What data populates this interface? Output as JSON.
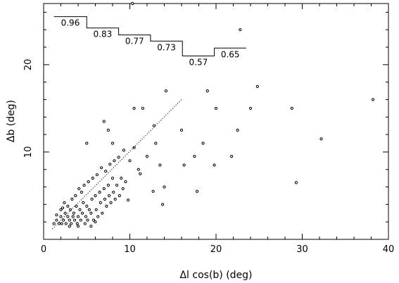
{
  "chart_data": {
    "type": "scatter",
    "xlabel": "Δl cos(b) (deg)",
    "ylabel": "Δb (deg)",
    "xlim": [
      0,
      40
    ],
    "ylim": [
      0,
      27
    ],
    "x_ticks": [
      0,
      10,
      20,
      30,
      40
    ],
    "y_ticks": [
      10,
      20
    ],
    "grid": false,
    "points": [
      [
        1.2,
        1.8
      ],
      [
        1.5,
        2.2
      ],
      [
        1.8,
        1.8
      ],
      [
        2.0,
        2.6
      ],
      [
        2.1,
        1.8
      ],
      [
        2.3,
        2.2
      ],
      [
        2.5,
        3.0
      ],
      [
        2.6,
        1.8
      ],
      [
        2.8,
        2.6
      ],
      [
        3.0,
        2.2
      ],
      [
        3.1,
        3.4
      ],
      [
        3.2,
        1.8
      ],
      [
        3.4,
        2.6
      ],
      [
        3.5,
        3.0
      ],
      [
        3.6,
        2.2
      ],
      [
        3.8,
        3.8
      ],
      [
        3.9,
        1.8
      ],
      [
        4.0,
        2.6
      ],
      [
        4.2,
        3.4
      ],
      [
        4.3,
        2.2
      ],
      [
        4.5,
        3.0
      ],
      [
        4.6,
        4.2
      ],
      [
        4.8,
        1.8
      ],
      [
        4.9,
        2.6
      ],
      [
        5.0,
        3.8
      ],
      [
        5.1,
        2.2
      ],
      [
        5.3,
        3.4
      ],
      [
        5.5,
        3.0
      ],
      [
        5.6,
        4.6
      ],
      [
        5.8,
        2.2
      ],
      [
        6.0,
        5.0
      ],
      [
        6.1,
        3.4
      ],
      [
        6.3,
        2.6
      ],
      [
        6.5,
        5.4
      ],
      [
        6.6,
        4.2
      ],
      [
        6.8,
        3.0
      ],
      [
        7.0,
        5.8
      ],
      [
        7.1,
        4.6
      ],
      [
        7.3,
        3.8
      ],
      [
        7.5,
        6.2
      ],
      [
        7.6,
        5.0
      ],
      [
        7.8,
        4.2
      ],
      [
        8.0,
        7.0
      ],
      [
        8.1,
        5.4
      ],
      [
        8.3,
        4.6
      ],
      [
        8.5,
        6.2
      ],
      [
        8.8,
        5.0
      ],
      [
        9.0,
        7.0
      ],
      [
        9.2,
        5.8
      ],
      [
        9.5,
        6.6
      ],
      [
        2.0,
        3.4
      ],
      [
        2.4,
        4.2
      ],
      [
        2.8,
        3.8
      ],
      [
        3.3,
        4.6
      ],
      [
        3.7,
        5.0
      ],
      [
        4.1,
        5.8
      ],
      [
        4.4,
        5.4
      ],
      [
        4.7,
        6.2
      ],
      [
        5.2,
        6.6
      ],
      [
        5.7,
        7.0
      ],
      [
        6.2,
        7.4
      ],
      [
        6.7,
        8.2
      ],
      [
        7.2,
        7.8
      ],
      [
        7.7,
        8.6
      ],
      [
        8.2,
        9.0
      ],
      [
        8.7,
        9.4
      ],
      [
        9.3,
        10.2
      ],
      [
        10.0,
        9.0
      ],
      [
        10.5,
        10.5
      ],
      [
        11.0,
        8.0
      ],
      [
        5.0,
        11.0
      ],
      [
        7.0,
        13.5
      ],
      [
        8.0,
        11.0
      ],
      [
        7.5,
        12.5
      ],
      [
        10.5,
        15.0
      ],
      [
        10.3,
        27.0
      ],
      [
        11.5,
        15.0
      ],
      [
        12.8,
        13.0
      ],
      [
        14.2,
        17.0
      ],
      [
        13.0,
        11.0
      ],
      [
        12.0,
        9.5
      ],
      [
        11.2,
        7.5
      ],
      [
        13.5,
        8.5
      ],
      [
        12.7,
        5.5
      ],
      [
        14.0,
        6.0
      ],
      [
        13.8,
        4.0
      ],
      [
        16.0,
        12.5
      ],
      [
        16.3,
        8.5
      ],
      [
        17.5,
        9.5
      ],
      [
        17.8,
        5.5
      ],
      [
        18.5,
        11.0
      ],
      [
        19.0,
        17.0
      ],
      [
        20.0,
        15.0
      ],
      [
        19.8,
        8.5
      ],
      [
        21.8,
        9.5
      ],
      [
        22.5,
        12.5
      ],
      [
        22.8,
        24.0
      ],
      [
        24.0,
        15.0
      ],
      [
        24.8,
        17.5
      ],
      [
        28.8,
        15.0
      ],
      [
        29.3,
        6.5
      ],
      [
        32.2,
        11.5
      ],
      [
        38.2,
        16.0
      ],
      [
        3.0,
        1.5
      ],
      [
        4.0,
        1.5
      ],
      [
        5.5,
        1.5
      ],
      [
        1.5,
        2.8
      ],
      [
        2.2,
        3.6
      ],
      [
        6.0,
        2.0
      ],
      [
        9.8,
        4.5
      ]
    ],
    "fit_line": {
      "x": [
        1.0,
        16.0
      ],
      "y": [
        1.2,
        16.0
      ]
    },
    "steps": [
      {
        "x0": 1.2,
        "x1": 5.0,
        "y": 25.5,
        "label": "0.96"
      },
      {
        "x0": 5.0,
        "x1": 8.7,
        "y": 24.2,
        "label": "0.83"
      },
      {
        "x0": 8.7,
        "x1": 12.4,
        "y": 23.4,
        "label": "0.77"
      },
      {
        "x0": 12.4,
        "x1": 16.1,
        "y": 22.7,
        "label": "0.73"
      },
      {
        "x0": 16.1,
        "x1": 19.8,
        "y": 21.0,
        "label": "0.57"
      },
      {
        "x0": 19.8,
        "x1": 23.5,
        "y": 21.9,
        "label": "0.65"
      }
    ]
  }
}
